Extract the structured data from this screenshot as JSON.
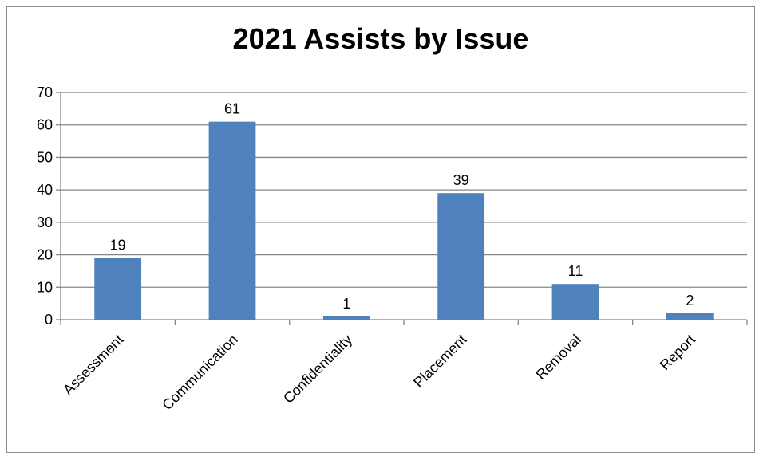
{
  "chart_data": {
    "type": "bar",
    "title": "2021 Assists by Issue",
    "xlabel": "",
    "ylabel": "",
    "categories": [
      "Assessment",
      "Communication",
      "Confidentiality",
      "Placement",
      "Removal",
      "Report"
    ],
    "values": [
      19,
      61,
      1,
      39,
      11,
      2
    ],
    "ylim": [
      0,
      70
    ],
    "yticks": [
      "0",
      "10",
      "20",
      "30",
      "40",
      "50",
      "60",
      "70"
    ],
    "grid": true,
    "legend": "none",
    "bar_color": "#4f81bd",
    "grid_color": "#868686"
  }
}
